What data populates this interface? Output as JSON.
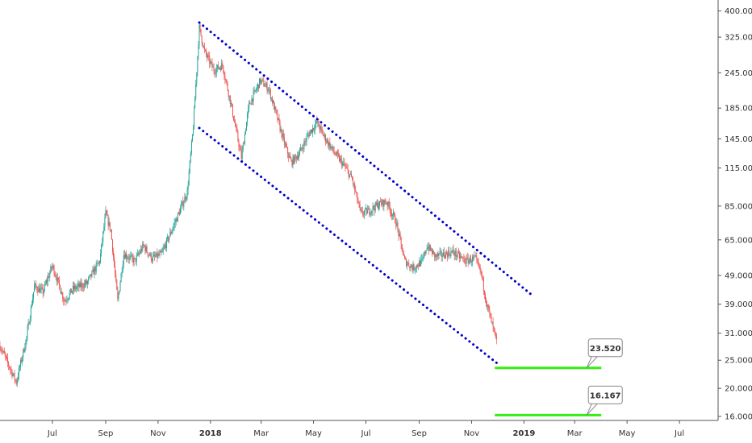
{
  "chart_data": {
    "type": "candlestick",
    "y_scale": "log",
    "ylim": [
      15.5,
      420
    ],
    "xlim": [
      "2017-05-01",
      "2019-08-15"
    ],
    "grid": false,
    "colors": {
      "up": "#26a69a",
      "down": "#ef5350",
      "trendline": "#0000cc",
      "support": "#33ee11",
      "axis": "#555555",
      "callout_border": "#888888"
    },
    "y_ticks": [
      {
        "value": 400,
        "label": "400.000"
      },
      {
        "value": 325,
        "label": "325.000"
      },
      {
        "value": 245,
        "label": "245.000"
      },
      {
        "value": 185,
        "label": "185.000"
      },
      {
        "value": 145,
        "label": "145.000"
      },
      {
        "value": 115,
        "label": "115.000"
      },
      {
        "value": 85,
        "label": "85.000"
      },
      {
        "value": 65,
        "label": "65.000"
      },
      {
        "value": 49,
        "label": "49.000"
      },
      {
        "value": 39,
        "label": "39.000"
      },
      {
        "value": 31,
        "label": "31.000"
      },
      {
        "value": 25,
        "label": "25.000"
      },
      {
        "value": 20,
        "label": "20.000"
      },
      {
        "value": 16,
        "label": "16.000"
      }
    ],
    "x_ticks": [
      {
        "date": "2017-07-01",
        "label": "Jul",
        "bold": false
      },
      {
        "date": "2017-09-01",
        "label": "Sep",
        "bold": false
      },
      {
        "date": "2017-11-01",
        "label": "Nov",
        "bold": false
      },
      {
        "date": "2018-01-01",
        "label": "2018",
        "bold": true
      },
      {
        "date": "2018-03-01",
        "label": "Mar",
        "bold": false
      },
      {
        "date": "2018-05-01",
        "label": "May",
        "bold": false
      },
      {
        "date": "2018-07-01",
        "label": "Jul",
        "bold": false
      },
      {
        "date": "2018-09-01",
        "label": "Sep",
        "bold": false
      },
      {
        "date": "2018-11-01",
        "label": "Nov",
        "bold": false
      },
      {
        "date": "2019-01-01",
        "label": "2019",
        "bold": true
      },
      {
        "date": "2019-03-01",
        "label": "Mar",
        "bold": false
      },
      {
        "date": "2019-05-01",
        "label": "May",
        "bold": false
      },
      {
        "date": "2019-07-01",
        "label": "Jul",
        "bold": false
      }
    ],
    "price_path": [
      [
        "2017-05-01",
        28
      ],
      [
        "2017-05-20",
        21
      ],
      [
        "2017-06-01",
        30
      ],
      [
        "2017-06-10",
        45
      ],
      [
        "2017-06-20",
        43
      ],
      [
        "2017-07-01",
        53
      ],
      [
        "2017-07-15",
        40
      ],
      [
        "2017-07-25",
        44
      ],
      [
        "2017-08-10",
        46
      ],
      [
        "2017-08-25",
        55
      ],
      [
        "2017-09-01",
        80
      ],
      [
        "2017-09-07",
        70
      ],
      [
        "2017-09-15",
        40
      ],
      [
        "2017-09-22",
        58
      ],
      [
        "2017-10-05",
        55
      ],
      [
        "2017-10-15",
        62
      ],
      [
        "2017-10-25",
        56
      ],
      [
        "2017-11-05",
        58
      ],
      [
        "2017-11-15",
        68
      ],
      [
        "2017-11-25",
        80
      ],
      [
        "2017-12-05",
        95
      ],
      [
        "2017-12-12",
        160
      ],
      [
        "2017-12-19",
        350
      ],
      [
        "2017-12-25",
        290
      ],
      [
        "2018-01-05",
        250
      ],
      [
        "2018-01-15",
        260
      ],
      [
        "2018-01-25",
        190
      ],
      [
        "2018-02-06",
        125
      ],
      [
        "2018-02-15",
        190
      ],
      [
        "2018-02-28",
        230
      ],
      [
        "2018-03-10",
        215
      ],
      [
        "2018-03-20",
        170
      ],
      [
        "2018-03-28",
        140
      ],
      [
        "2018-04-05",
        120
      ],
      [
        "2018-04-15",
        130
      ],
      [
        "2018-04-25",
        150
      ],
      [
        "2018-05-05",
        165
      ],
      [
        "2018-05-12",
        150
      ],
      [
        "2018-05-25",
        130
      ],
      [
        "2018-06-05",
        118
      ],
      [
        "2018-06-15",
        105
      ],
      [
        "2018-06-25",
        80
      ],
      [
        "2018-07-05",
        82
      ],
      [
        "2018-07-15",
        86
      ],
      [
        "2018-07-25",
        88
      ],
      [
        "2018-08-05",
        75
      ],
      [
        "2018-08-15",
        55
      ],
      [
        "2018-08-25",
        52
      ],
      [
        "2018-09-05",
        55
      ],
      [
        "2018-09-10",
        62
      ],
      [
        "2018-09-20",
        57
      ],
      [
        "2018-10-01",
        58
      ],
      [
        "2018-10-10",
        59
      ],
      [
        "2018-10-25",
        55
      ],
      [
        "2018-11-05",
        56
      ],
      [
        "2018-11-12",
        50
      ],
      [
        "2018-11-18",
        40
      ],
      [
        "2018-11-25",
        33
      ],
      [
        "2018-11-30",
        29
      ]
    ],
    "trendlines": [
      {
        "start": [
          "2017-12-19",
          365
        ],
        "end": [
          "2019-01-10",
          42
        ]
      },
      {
        "start": [
          "2017-12-19",
          158
        ],
        "end": [
          "2018-11-30",
          24.5
        ]
      }
    ],
    "support_levels": [
      {
        "value": 23.52,
        "label": "23.520",
        "from": "2018-11-28",
        "to": "2019-04-01"
      },
      {
        "value": 16.167,
        "label": "16.167",
        "from": "2018-11-28",
        "to": "2019-04-01"
      }
    ]
  }
}
